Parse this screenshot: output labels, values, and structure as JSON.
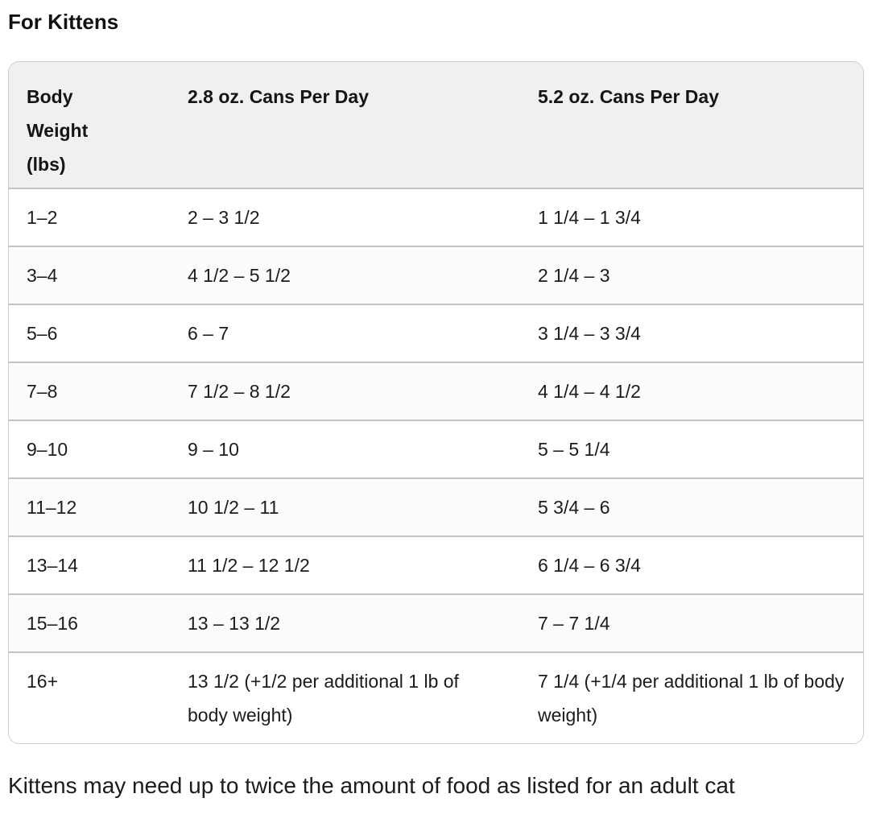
{
  "page": {
    "title": "For Kittens",
    "note": "Kittens may need up to twice the amount of food as listed for an adult cat"
  },
  "colors": {
    "header_background": "#f0f0ef",
    "alternate_row_background": "#fbfbfb",
    "row_border": "#c3c3c3",
    "card_border": "#cccccc",
    "text": "#1c1c1c"
  },
  "table": {
    "headers": {
      "col1": "Body Weight (lbs)",
      "col2": "2.8 oz. Cans Per Day",
      "col3": "5.2 oz. Cans Per Day"
    },
    "rows": [
      {
        "weight": "1–2",
        "cans_2_8": "2 – 3 1/2",
        "cans_5_2": "1 1/4 – 1 3/4"
      },
      {
        "weight": "3–4",
        "cans_2_8": "4 1/2 – 5 1/2",
        "cans_5_2": "2 1/4 – 3"
      },
      {
        "weight": "5–6",
        "cans_2_8": "6 – 7",
        "cans_5_2": "3 1/4 – 3 3/4"
      },
      {
        "weight": "7–8",
        "cans_2_8": "7 1/2 – 8 1/2",
        "cans_5_2": "4 1/4 – 4 1/2"
      },
      {
        "weight": "9–10",
        "cans_2_8": "9 – 10",
        "cans_5_2": "5 – 5 1/4"
      },
      {
        "weight": "11–12",
        "cans_2_8": "10 1/2 – 11",
        "cans_5_2": "5 3/4 – 6"
      },
      {
        "weight": "13–14",
        "cans_2_8": "11 1/2 – 12 1/2",
        "cans_5_2": "6 1/4 – 6 3/4"
      },
      {
        "weight": "15–16",
        "cans_2_8": "13 – 13 1/2",
        "cans_5_2": "7 – 7 1/4"
      },
      {
        "weight": "16+",
        "cans_2_8": "13 1/2 (+1/2 per additional 1 lb of body weight)",
        "cans_5_2": "7 1/4 (+1/4 per additional 1 lb of body weight)"
      }
    ]
  }
}
